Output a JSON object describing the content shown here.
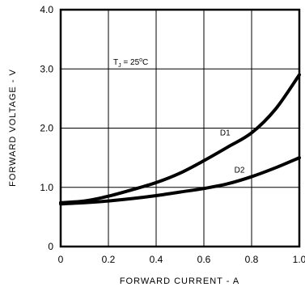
{
  "chart_data": {
    "type": "line",
    "xlabel": "FORWARD CURRENT - A",
    "ylabel": "FORWARD VOLTAGE - V",
    "xlim": [
      0,
      1.0
    ],
    "ylim": [
      0,
      4.0
    ],
    "x_ticks": [
      "0",
      "0.2",
      "0.4",
      "0.6",
      "0.8",
      "1.0"
    ],
    "y_ticks": [
      "0",
      "1.0",
      "2.0",
      "3.0",
      "4.0"
    ],
    "grid": true,
    "annotation": {
      "t_main": "T",
      "t_sub": "J",
      "t_rest": " = 25",
      "t_deg": "o",
      "t_unit": "C"
    },
    "series": [
      {
        "name": "D1",
        "x": [
          0,
          0.1,
          0.2,
          0.3,
          0.4,
          0.5,
          0.6,
          0.7,
          0.8,
          0.9,
          1.0
        ],
        "y": [
          0.74,
          0.77,
          0.85,
          0.96,
          1.08,
          1.24,
          1.45,
          1.68,
          1.92,
          2.32,
          2.9
        ]
      },
      {
        "name": "D2",
        "x": [
          0,
          0.1,
          0.2,
          0.3,
          0.4,
          0.5,
          0.6,
          0.7,
          0.8,
          0.9,
          1.0
        ],
        "y": [
          0.72,
          0.74,
          0.77,
          0.81,
          0.86,
          0.92,
          0.98,
          1.06,
          1.18,
          1.33,
          1.5
        ]
      }
    ]
  }
}
